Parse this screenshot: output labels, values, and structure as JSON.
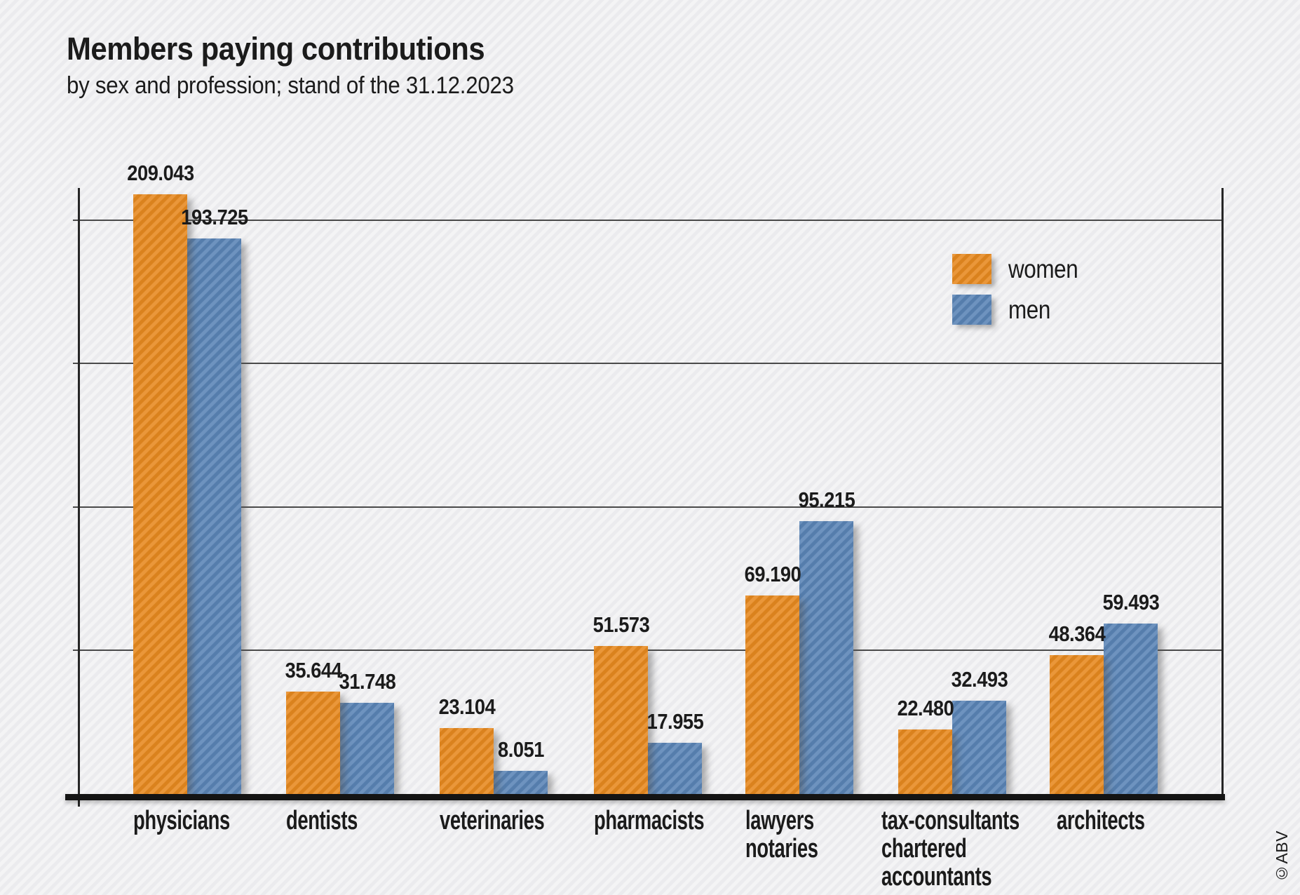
{
  "title": "Members paying contributions",
  "subtitle": "by sex and profession; stand of the 31.12.2023",
  "credit": "©ABV",
  "colors": {
    "women": "#E7891F",
    "men": "#5A84B6",
    "background": "#F2F2F4",
    "axis": "#262626",
    "text": "#1B1B1B"
  },
  "legend": [
    {
      "label": "women",
      "color": "#E7891F"
    },
    {
      "label": "men",
      "color": "#5A84B6"
    }
  ],
  "chart_data": {
    "type": "bar",
    "title": "Members paying contributions",
    "subtitle": "by sex and profession; stand of the 31.12.2023",
    "categories": [
      "physicians",
      "dentists",
      "veterinaries",
      "pharmacists",
      "lawyers notaries",
      "tax-consultants chartered accountants",
      "architects"
    ],
    "category_label_lines": [
      [
        "physicians"
      ],
      [
        "dentists"
      ],
      [
        "veterinaries"
      ],
      [
        "pharmacists"
      ],
      [
        "lawyers",
        "notaries"
      ],
      [
        "tax-consultants",
        "chartered",
        "accountants"
      ],
      [
        "architects"
      ]
    ],
    "series": [
      {
        "name": "women",
        "color": "#E7891F",
        "values": [
          209043,
          35644,
          23104,
          51573,
          69190,
          22480,
          48364
        ],
        "value_labels": [
          "209.043",
          "35.644",
          "23.104",
          "51.573",
          "69.190",
          "22.480",
          "48.364"
        ]
      },
      {
        "name": "men",
        "color": "#5A84B6",
        "values": [
          193725,
          31748,
          8051,
          17955,
          95215,
          32493,
          59493
        ],
        "value_labels": [
          "193.725",
          "31.748",
          "8.051",
          "17.955",
          "95.215",
          "32.493",
          "59.493"
        ]
      }
    ],
    "xlabel": "",
    "ylabel": "",
    "ylim": [
      0,
      212000
    ],
    "gridlines": [
      50000,
      100000,
      150000,
      200000
    ],
    "gridline_step": 50000,
    "y_tick_labels_shown": false,
    "grid": true,
    "legend_position": "upper right"
  }
}
